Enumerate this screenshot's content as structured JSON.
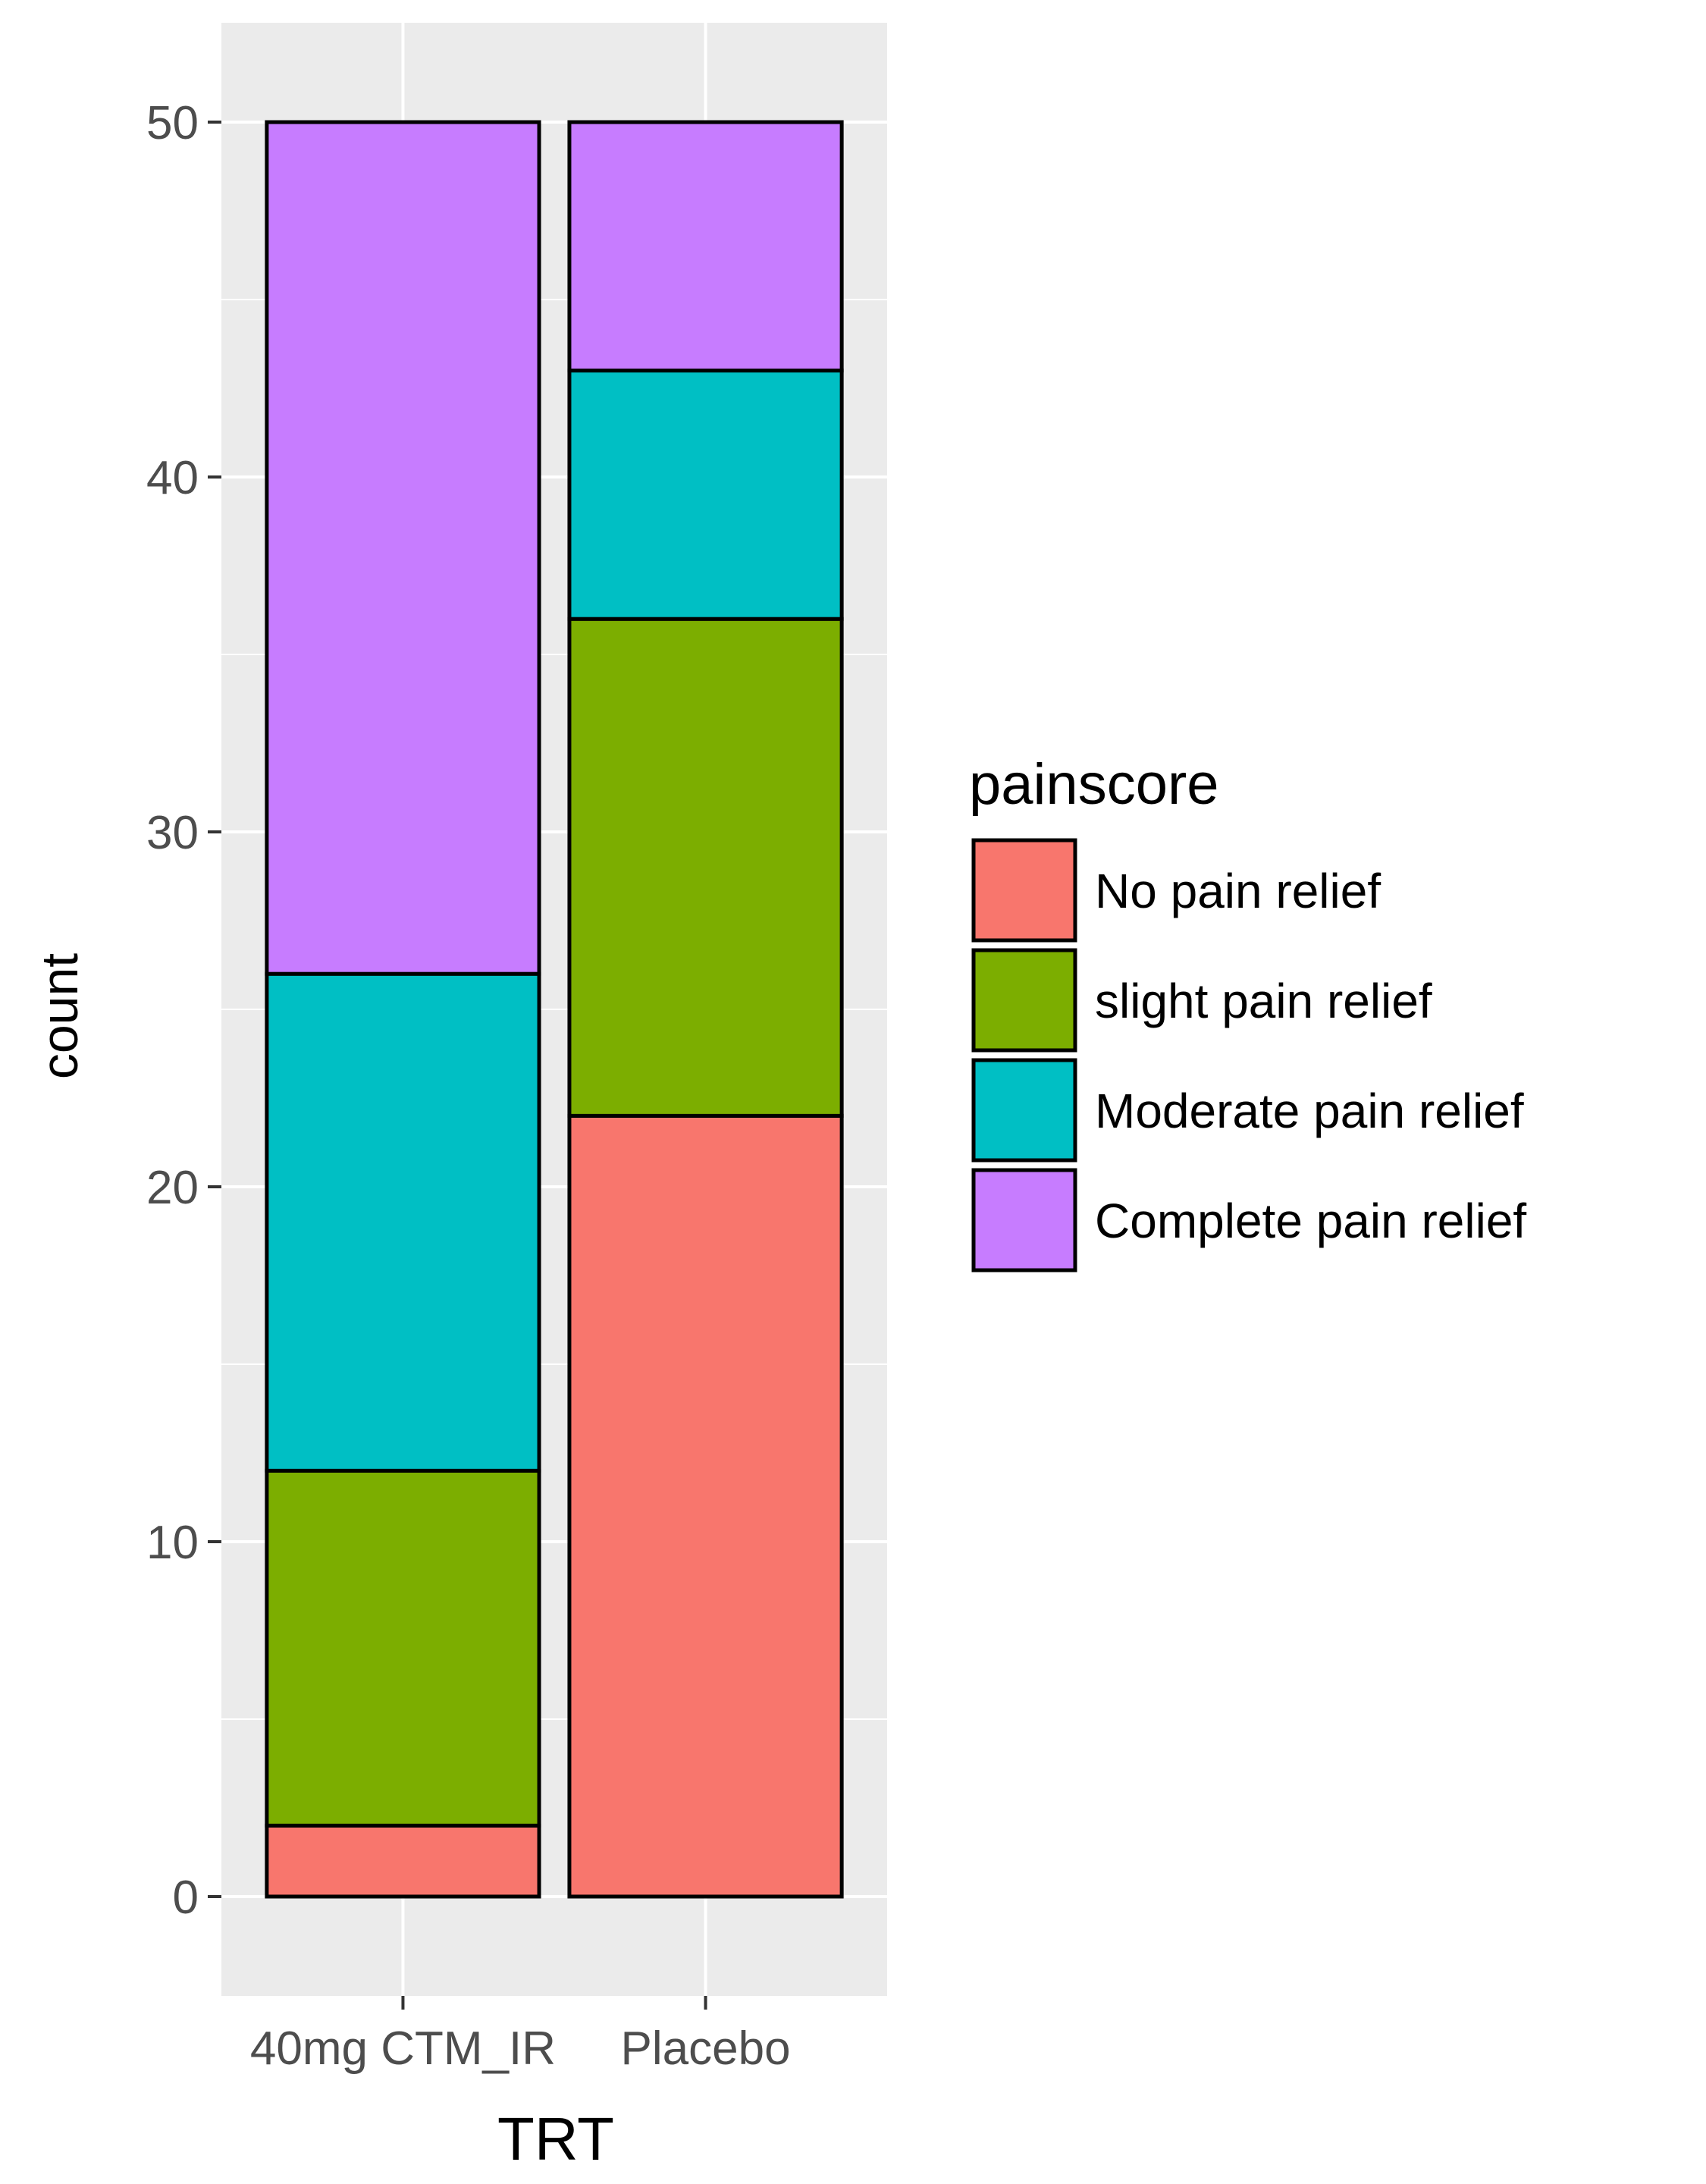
{
  "chart_data": {
    "type": "bar",
    "stacked": true,
    "title": "",
    "xlabel": "TRT",
    "ylabel": "count",
    "categories": [
      "40mg CTM_IR",
      "Placebo"
    ],
    "ylim": [
      -2.8,
      52.8
    ],
    "yticks": [
      0,
      10,
      20,
      30,
      40,
      50
    ],
    "grid": true,
    "legend": {
      "title": "painscore",
      "placement": "right"
    },
    "series": [
      {
        "name": "No pain relief",
        "color": "#F8766D",
        "values": [
          2,
          22
        ]
      },
      {
        "name": "slight pain relief",
        "color": "#7CAE00",
        "values": [
          10,
          14
        ]
      },
      {
        "name": "Moderate pain relief",
        "color": "#00BFC4",
        "values": [
          14,
          7
        ]
      },
      {
        "name": "Complete pain relief",
        "color": "#C77CFF",
        "values": [
          24,
          7
        ]
      }
    ],
    "panel_background": "#EBEBEB",
    "grid_color": "#FFFFFF",
    "bar_outline": "#000000"
  }
}
